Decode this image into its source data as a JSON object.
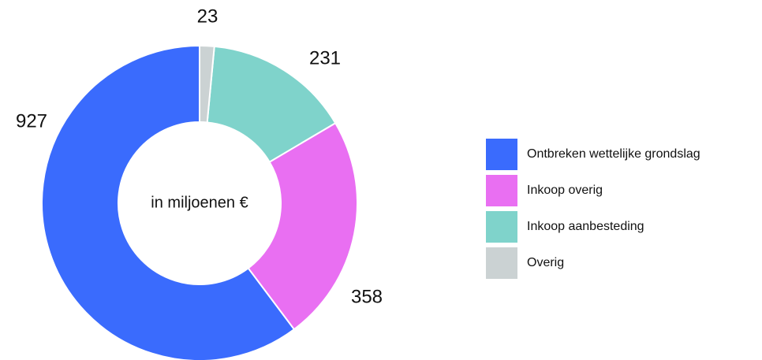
{
  "chart_data": {
    "type": "donut",
    "center_label": "in miljoenen €",
    "categories": [
      "Ontbreken wettelijke grondslag",
      "Inkoop overig",
      "Inkoop aanbesteding",
      "Overig"
    ],
    "values": [
      927,
      358,
      231,
      23
    ],
    "colors": [
      "#3a6bfd",
      "#e96ff2",
      "#7fd3cb",
      "#cbd2d3"
    ],
    "direction": "counterclockwise",
    "legend": "right"
  }
}
